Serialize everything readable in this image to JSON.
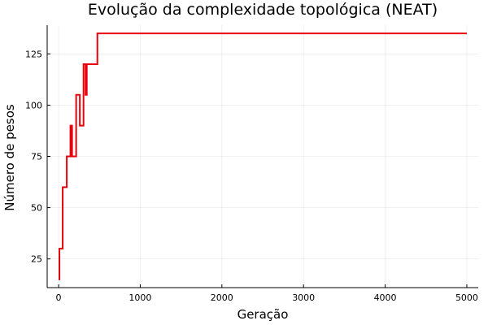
{
  "chart_data": {
    "type": "line",
    "title": "Evolução da complexidade topológica (NEAT)",
    "xlabel": "Geração",
    "ylabel": "Número de pesos",
    "xlim": [
      -140,
      5140
    ],
    "ylim": [
      11,
      139
    ],
    "xticks": [
      0,
      1000,
      2000,
      3000,
      4000,
      5000
    ],
    "yticks": [
      25,
      50,
      75,
      100,
      125
    ],
    "grid": true,
    "legend": "none",
    "series": [
      {
        "color": "#e8000b",
        "step": true,
        "x": [
          0,
          10,
          50,
          100,
          145,
          165,
          215,
          260,
          305,
          330,
          345,
          475,
          5000
        ],
        "y": [
          15,
          30,
          60,
          75,
          90,
          75,
          105,
          90,
          120,
          105,
          120,
          135,
          135
        ]
      }
    ]
  }
}
